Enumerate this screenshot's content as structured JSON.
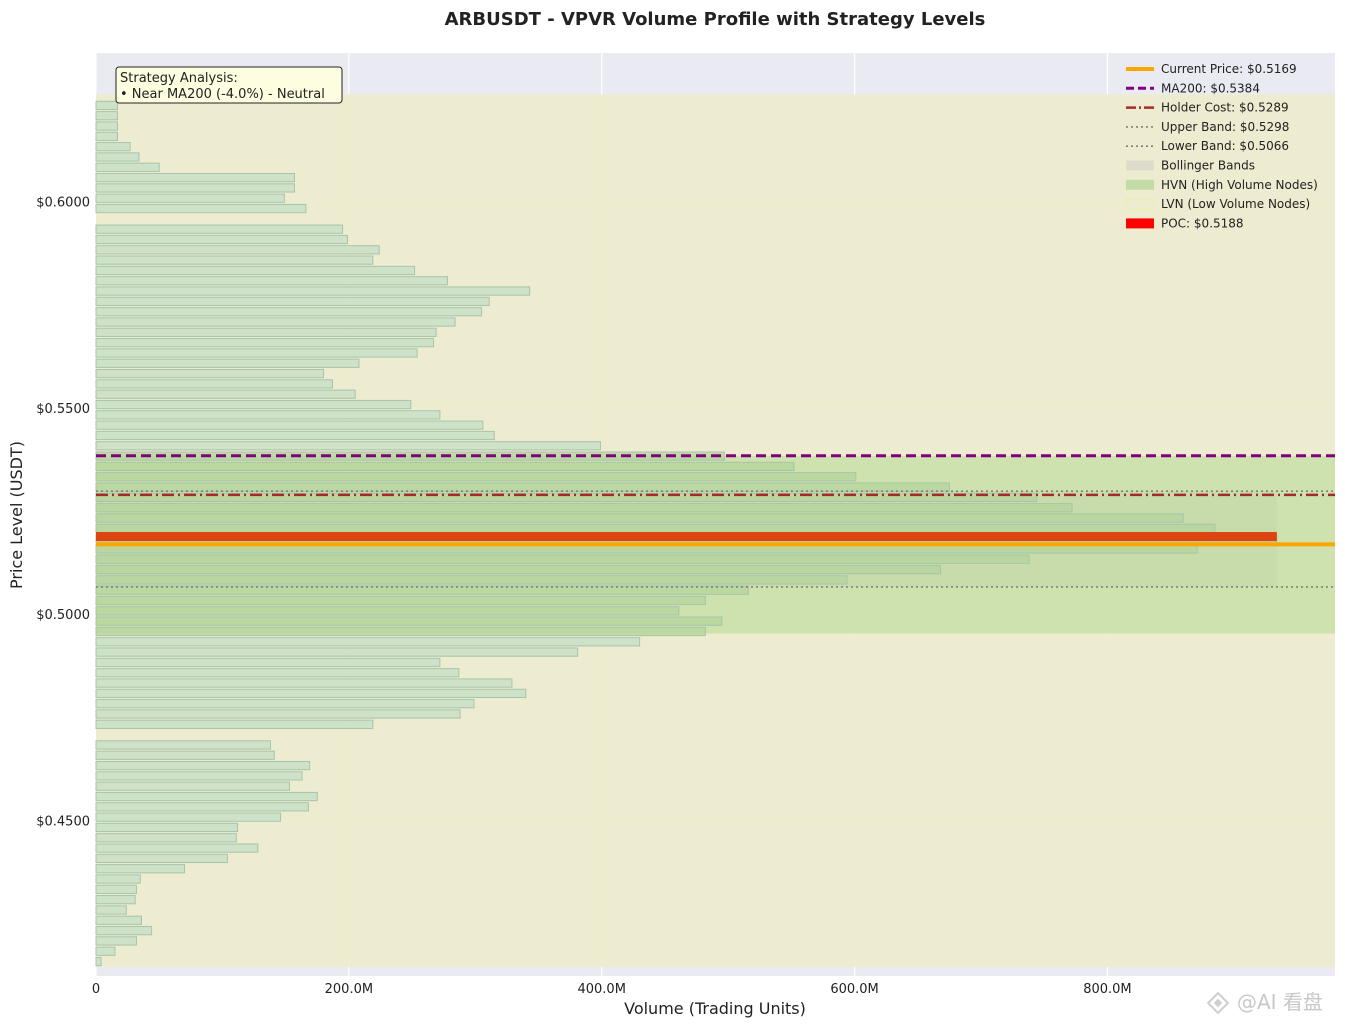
{
  "chart_data": {
    "type": "bar",
    "orientation": "horizontal",
    "title": "ARBUSDT - VPVR Volume Profile with Strategy Levels",
    "xlabel": "Volume (Trading Units)",
    "ylabel": "Price Level (USDT)",
    "xlim": [
      0,
      980000000
    ],
    "ylim": [
      0.4123,
      0.636
    ],
    "x_ticks": [
      0,
      200000000,
      400000000,
      600000000,
      800000000
    ],
    "x_tick_labels": [
      "0",
      "200.0M",
      "400.0M",
      "600.0M",
      "800.0M"
    ],
    "y_ticks": [
      0.45,
      0.5,
      0.55,
      0.6
    ],
    "y_tick_labels": [
      "$0.4500",
      "$0.5000",
      "$0.5500",
      "$0.6000"
    ],
    "bin_width": 0.0025,
    "bins": [
      {
        "price": 0.4158,
        "volume": 4000000
      },
      {
        "price": 0.4183,
        "volume": 15000000
      },
      {
        "price": 0.4208,
        "volume": 32000000
      },
      {
        "price": 0.4233,
        "volume": 44000000
      },
      {
        "price": 0.4258,
        "volume": 36000000
      },
      {
        "price": 0.4283,
        "volume": 24000000
      },
      {
        "price": 0.4308,
        "volume": 31000000
      },
      {
        "price": 0.4333,
        "volume": 32000000
      },
      {
        "price": 0.4358,
        "volume": 35000000
      },
      {
        "price": 0.4383,
        "volume": 70000000
      },
      {
        "price": 0.4408,
        "volume": 104000000
      },
      {
        "price": 0.4433,
        "volume": 128000000
      },
      {
        "price": 0.4458,
        "volume": 111000000
      },
      {
        "price": 0.4483,
        "volume": 112000000
      },
      {
        "price": 0.4508,
        "volume": 146000000
      },
      {
        "price": 0.4533,
        "volume": 168000000
      },
      {
        "price": 0.4558,
        "volume": 175000000
      },
      {
        "price": 0.4583,
        "volume": 153000000
      },
      {
        "price": 0.4608,
        "volume": 163000000
      },
      {
        "price": 0.4633,
        "volume": 169000000
      },
      {
        "price": 0.4658,
        "volume": 141000000
      },
      {
        "price": 0.4683,
        "volume": 138000000
      },
      {
        "price": 0.4708,
        "volume": 0
      },
      {
        "price": 0.4733,
        "volume": 219000000
      },
      {
        "price": 0.4758,
        "volume": 288000000
      },
      {
        "price": 0.4783,
        "volume": 299000000
      },
      {
        "price": 0.4808,
        "volume": 340000000
      },
      {
        "price": 0.4833,
        "volume": 329000000
      },
      {
        "price": 0.4858,
        "volume": 287000000
      },
      {
        "price": 0.4883,
        "volume": 272000000
      },
      {
        "price": 0.4908,
        "volume": 381000000
      },
      {
        "price": 0.4933,
        "volume": 430000000
      },
      {
        "price": 0.4958,
        "volume": 482000000
      },
      {
        "price": 0.4983,
        "volume": 495000000
      },
      {
        "price": 0.5008,
        "volume": 461000000
      },
      {
        "price": 0.5033,
        "volume": 482000000
      },
      {
        "price": 0.5058,
        "volume": 516000000
      },
      {
        "price": 0.5083,
        "volume": 594000000
      },
      {
        "price": 0.5108,
        "volume": 668000000
      },
      {
        "price": 0.5133,
        "volume": 738000000
      },
      {
        "price": 0.5158,
        "volume": 871000000
      },
      {
        "price": 0.5183,
        "volume": 934000000
      },
      {
        "price": 0.5208,
        "volume": 885000000
      },
      {
        "price": 0.5233,
        "volume": 860000000
      },
      {
        "price": 0.5258,
        "volume": 772000000
      },
      {
        "price": 0.5283,
        "volume": 744000000
      },
      {
        "price": 0.5308,
        "volume": 675000000
      },
      {
        "price": 0.5333,
        "volume": 601000000
      },
      {
        "price": 0.5358,
        "volume": 552000000
      },
      {
        "price": 0.5383,
        "volume": 497000000
      },
      {
        "price": 0.5408,
        "volume": 399000000
      },
      {
        "price": 0.5433,
        "volume": 315000000
      },
      {
        "price": 0.5458,
        "volume": 306000000
      },
      {
        "price": 0.5483,
        "volume": 272000000
      },
      {
        "price": 0.5508,
        "volume": 249000000
      },
      {
        "price": 0.5533,
        "volume": 205000000
      },
      {
        "price": 0.5558,
        "volume": 187000000
      },
      {
        "price": 0.5583,
        "volume": 180000000
      },
      {
        "price": 0.5608,
        "volume": 208000000
      },
      {
        "price": 0.5633,
        "volume": 254000000
      },
      {
        "price": 0.5658,
        "volume": 267000000
      },
      {
        "price": 0.5683,
        "volume": 269000000
      },
      {
        "price": 0.5708,
        "volume": 284000000
      },
      {
        "price": 0.5733,
        "volume": 305000000
      },
      {
        "price": 0.5758,
        "volume": 311000000
      },
      {
        "price": 0.5783,
        "volume": 343000000
      },
      {
        "price": 0.5808,
        "volume": 278000000
      },
      {
        "price": 0.5833,
        "volume": 252000000
      },
      {
        "price": 0.5858,
        "volume": 219000000
      },
      {
        "price": 0.5883,
        "volume": 224000000
      },
      {
        "price": 0.5908,
        "volume": 199000000
      },
      {
        "price": 0.5933,
        "volume": 195000000
      },
      {
        "price": 0.5958,
        "volume": 0
      },
      {
        "price": 0.5983,
        "volume": 166000000
      },
      {
        "price": 0.6008,
        "volume": 149000000
      },
      {
        "price": 0.6033,
        "volume": 157000000
      },
      {
        "price": 0.6058,
        "volume": 157000000
      },
      {
        "price": 0.6083,
        "volume": 50000000
      },
      {
        "price": 0.6108,
        "volume": 34000000
      },
      {
        "price": 0.6133,
        "volume": 27000000
      },
      {
        "price": 0.6158,
        "volume": 17000000
      },
      {
        "price": 0.6183,
        "volume": 17000000
      },
      {
        "price": 0.6208,
        "volume": 17000000
      },
      {
        "price": 0.6233,
        "volume": 17000000
      },
      {
        "price": 0.6258,
        "volume": 0
      }
    ],
    "levels": {
      "current_price": 0.5169,
      "ma200": 0.5384,
      "holder_cost": 0.5289,
      "upper_band": 0.5298,
      "lower_band": 0.5066,
      "poc": 0.5188
    },
    "regions": {
      "value_area": [
        0.4145,
        0.626
      ],
      "hvn_zone": [
        0.4953,
        0.5383
      ],
      "bollinger_band": [
        0.5066,
        0.5298
      ]
    },
    "legend": {
      "position": "top-right",
      "entries": [
        {
          "label": "Current Price: $0.5169",
          "style": "solid",
          "color": "#ffa500"
        },
        {
          "label": "MA200: $0.5384",
          "style": "dashed",
          "color": "#800080"
        },
        {
          "label": "Holder Cost: $0.5289",
          "style": "dashdot",
          "color": "#a52a2a"
        },
        {
          "label": "Upper Band: $0.5298",
          "style": "dotted",
          "color": "#808080"
        },
        {
          "label": "Lower Band: $0.5066",
          "style": "dotted",
          "color": "#808080"
        },
        {
          "label": "Bollinger Bands",
          "style": "patch",
          "color": "#d8d8c8"
        },
        {
          "label": "HVN (High Volume Nodes)",
          "style": "patch",
          "color": "#b8d89c"
        },
        {
          "label": "LVN (Low Volume Nodes)",
          "style": "hatch",
          "color": "#ffff99"
        },
        {
          "label": "POC: $0.5188",
          "style": "patch",
          "color": "#ff0000"
        }
      ]
    },
    "annotation": {
      "lines": [
        "Strategy Analysis:",
        "• Near MA200 (-4.0%) - Neutral"
      ]
    },
    "grid": true
  },
  "colors": {
    "axes_bg": "#eaeaf2",
    "value_area": "#eeeccd",
    "hvn": "#c8e0a8",
    "bar_fill": "#c8e0c8",
    "bar_edge": "#a8c4a8",
    "poc": "#dd4411",
    "current_price": "#ffa500",
    "ma200": "#800080",
    "holder_cost": "#a52a2a",
    "band_line": "#808080",
    "annotation_bg": "#fdfde0"
  },
  "watermark": {
    "text": "@AI 看盘"
  }
}
